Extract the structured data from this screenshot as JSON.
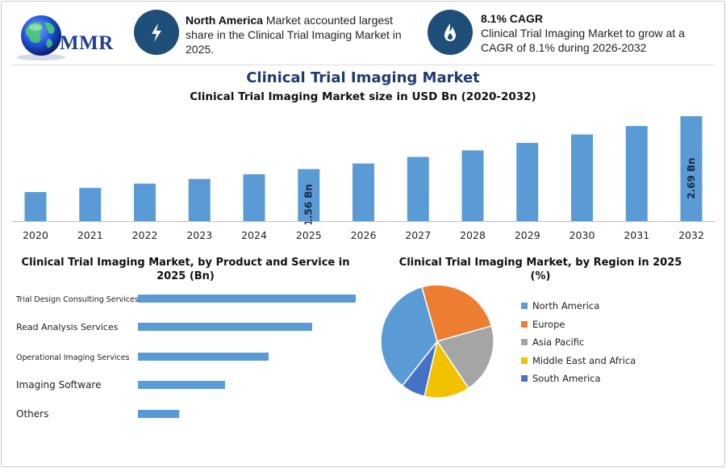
{
  "brand": {
    "logo_text": "MMR"
  },
  "kpis": [
    {
      "icon": "lightning-bolt-icon",
      "bold": "North America",
      "text": " Market accounted largest share in the Clinical Trial Imaging Market in 2025."
    },
    {
      "icon": "flame-drop-icon",
      "bold": "8.1% CAGR",
      "text": "Clinical Trial Imaging Market to grow at a CAGR of 8.1% during 2026-2032"
    }
  ],
  "colors": {
    "bar": "#5b9bd5",
    "icon_bg": "#1f4e79",
    "title": "#1f3a72"
  },
  "header": {
    "title": "Clinical Trial Imaging Market",
    "subtitle": "Clinical Trial Imaging Market size in USD Bn (2020-2032)"
  },
  "product_title": "Clinical Trial Imaging Market, by Product and Service in 2025 (Bn)",
  "region_title": "Clinical Trial Imaging Market, by Region in 2025 (%)",
  "chart_data": [
    {
      "type": "bar",
      "title": "Clinical Trial Imaging Market size in USD Bn (2020-2032)",
      "categories": [
        "2020",
        "2021",
        "2022",
        "2023",
        "2024",
        "2025",
        "2026",
        "2027",
        "2028",
        "2029",
        "2030",
        "2031",
        "2032"
      ],
      "values": [
        1.07,
        1.16,
        1.25,
        1.35,
        1.45,
        1.56,
        1.68,
        1.82,
        1.96,
        2.12,
        2.3,
        2.48,
        2.69
      ],
      "data_labels": {
        "5": "1.56 Bn",
        "12": "2.69 Bn"
      },
      "ylim": [
        0.45,
        2.69
      ],
      "grid": false
    },
    {
      "type": "bar",
      "orientation": "horizontal",
      "title": "Clinical Trial Imaging Market, by Product and Service in 2025 (Bn)",
      "categories": [
        "Trial Design Consulting Services",
        "Read Analysis Services",
        "Operational Imaging Services",
        "Imaging Software",
        "Others"
      ],
      "values": [
        0.5,
        0.4,
        0.3,
        0.2,
        0.095
      ],
      "xlim": [
        0,
        0.5
      ]
    },
    {
      "type": "pie",
      "title": "Clinical Trial Imaging Market, by Region in 2025 (%)",
      "categories": [
        "North America",
        "Europe",
        "Asia Pacific",
        "Middle East and Africa",
        "South America"
      ],
      "values": [
        35,
        25,
        20,
        13,
        7
      ],
      "colors": [
        "#5b9bd5",
        "#ed7d31",
        "#a5a5a5",
        "#f2c200",
        "#4472c4"
      ],
      "legend_position": "right"
    }
  ]
}
